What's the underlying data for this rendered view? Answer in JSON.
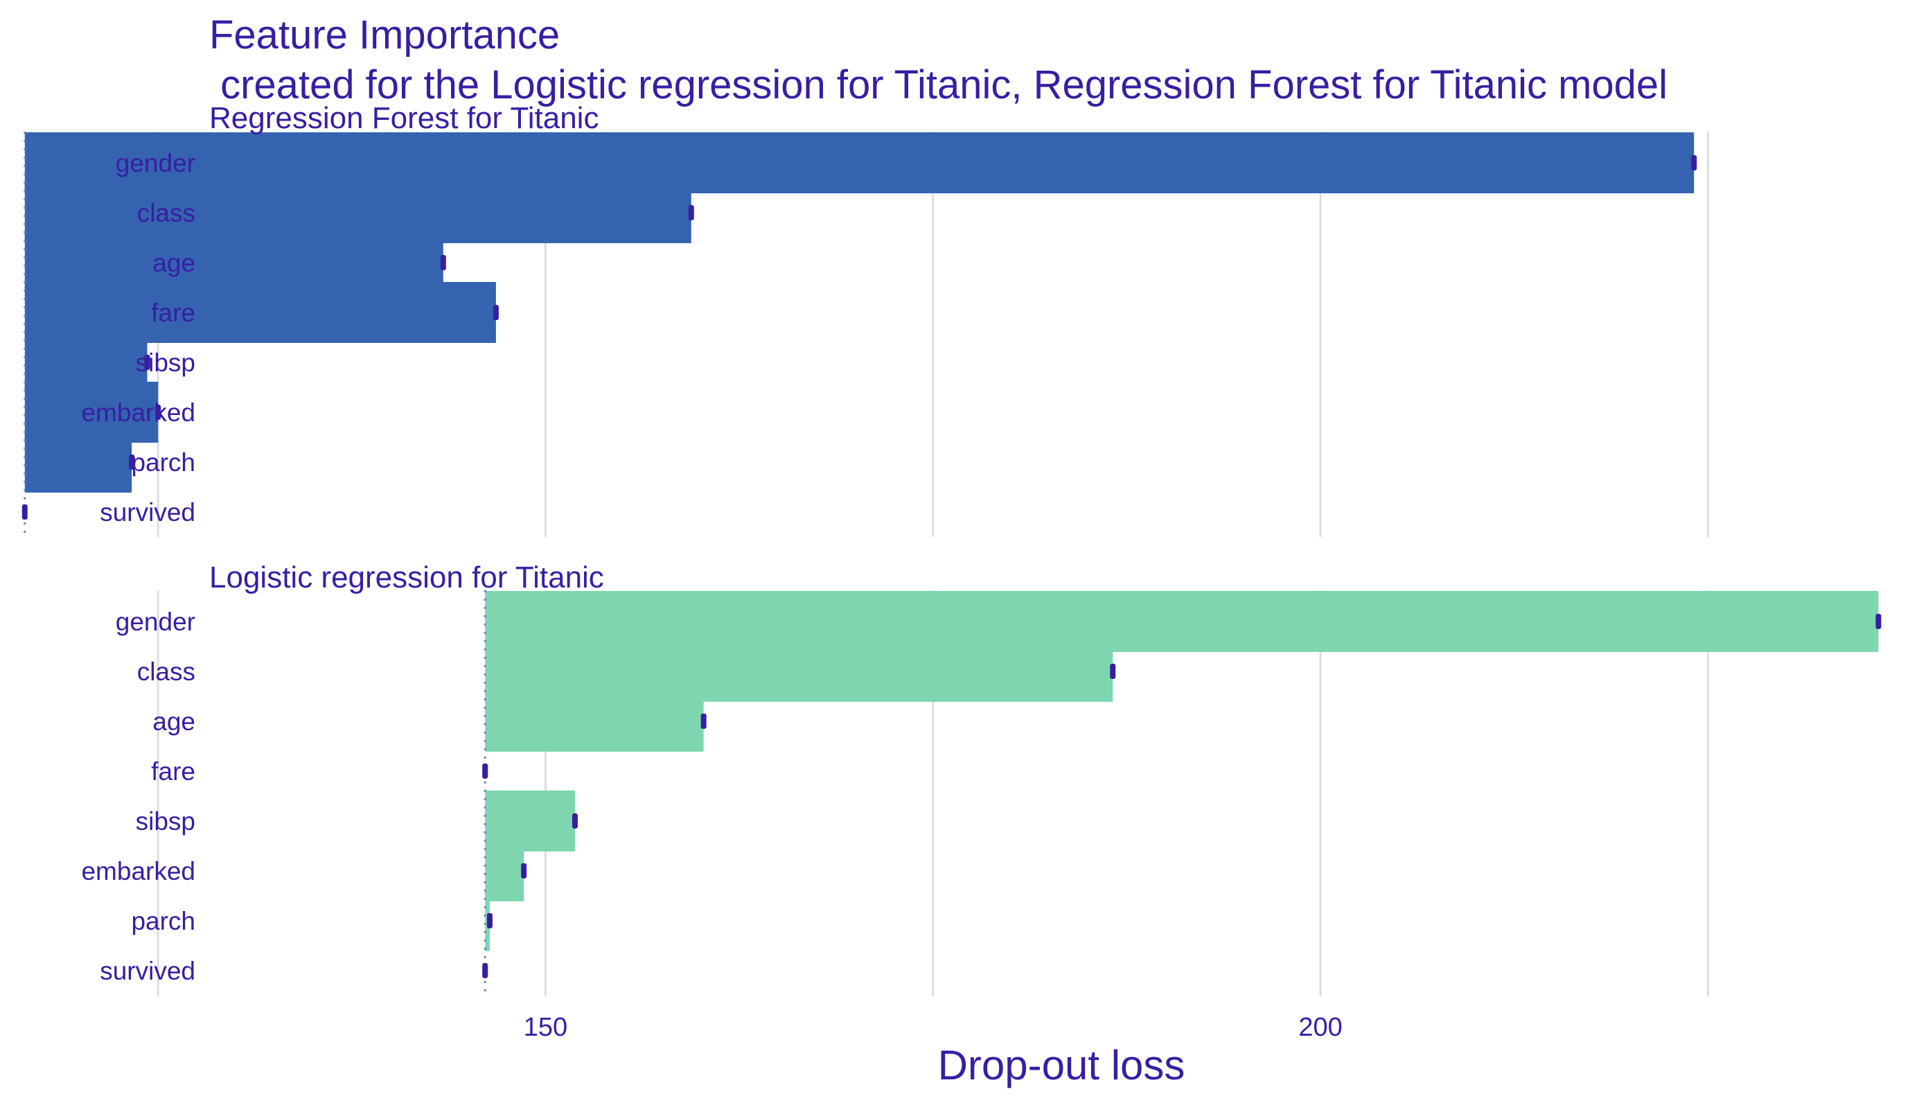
{
  "chart_data": {
    "type": "bar",
    "title": "Feature Importance",
    "subtitle": " created for the Logistic regression for Titanic, Regression Forest for Titanic model",
    "xlabel": "Drop-out loss",
    "ylabel": "",
    "xlim": [
      128.3,
      237.5
    ],
    "x_ticks": [
      150,
      200
    ],
    "x_gridlines": [
      125,
      150,
      175,
      200,
      225
    ],
    "grid": true,
    "legend": "none",
    "categories": [
      "gender",
      "class",
      "age",
      "fare",
      "sibsp",
      "embarked",
      "parch",
      "survived"
    ],
    "panels": [
      {
        "name": "Regression Forest for Titanic",
        "color": "#3563B0",
        "baseline": 116.4,
        "values": [
          224.1,
          159.4,
          143.4,
          146.8,
          124.3,
          125.0,
          123.3,
          116.4
        ]
      },
      {
        "name": "Logistic regression for Titanic",
        "color": "#7DD6B0",
        "baseline": 146.1,
        "values": [
          236.0,
          186.6,
          160.2,
          146.1,
          151.9,
          148.6,
          146.4,
          146.1
        ]
      }
    ],
    "colors": {
      "text": "#371EA3",
      "baseline_line": "#5A8FBF",
      "grid": "#DDDDDD",
      "error_mark": "#371EA3"
    }
  }
}
